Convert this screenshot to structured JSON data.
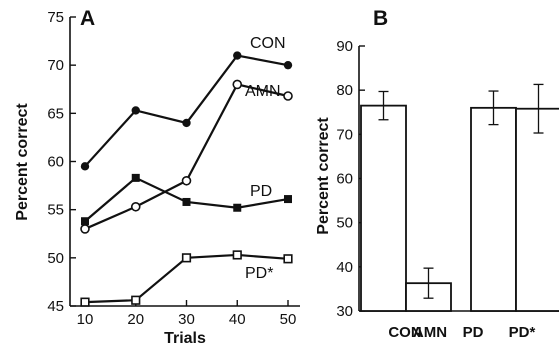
{
  "chart_data": [
    {
      "type": "line",
      "panel_label": "A",
      "title": "",
      "xlabel": "Trials",
      "ylabel": "Percent correct",
      "x": [
        10,
        20,
        30,
        40,
        50
      ],
      "xticks": [
        "10",
        "20",
        "30",
        "40",
        "50"
      ],
      "xlim": [
        5,
        52
      ],
      "ylim": [
        45,
        75
      ],
      "yticks": [
        "45",
        "50",
        "55",
        "60",
        "65",
        "70",
        "75"
      ],
      "grid": false,
      "series": [
        {
          "name": "CON",
          "marker": "filled-circle",
          "values": [
            59.5,
            65.3,
            64.0,
            71.0,
            70.0
          ]
        },
        {
          "name": "AMN",
          "marker": "open-circle",
          "values": [
            53.0,
            55.3,
            58.0,
            68.0,
            66.8
          ]
        },
        {
          "name": "PD",
          "marker": "filled-square",
          "values": [
            53.8,
            58.3,
            55.8,
            55.2,
            56.1
          ]
        },
        {
          "name": "PD*",
          "marker": "open-square",
          "values": [
            45.4,
            45.6,
            50.0,
            50.3,
            49.9
          ]
        }
      ]
    },
    {
      "type": "bar",
      "panel_label": "B",
      "title": "",
      "xlabel": "",
      "ylabel": "Percent correct",
      "categories": [
        "CON",
        "AMN",
        "PD",
        "PD*"
      ],
      "values": [
        76.5,
        36.3,
        76.0,
        75.8
      ],
      "errors": [
        3.2,
        3.4,
        3.8,
        5.5
      ],
      "ylim": [
        30,
        90
      ],
      "yticks": [
        "30",
        "40",
        "50",
        "60",
        "70",
        "80",
        "90"
      ],
      "grid": false
    }
  ]
}
